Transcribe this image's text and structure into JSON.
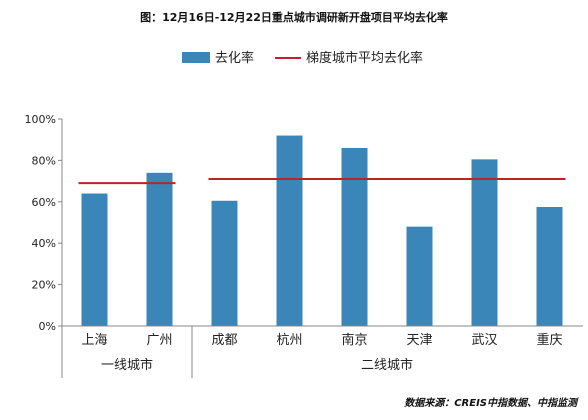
{
  "chart_data": {
    "type": "bar",
    "title": "图：12月16日-12月22日重点城市调研新开盘项目平均去化率",
    "categories": [
      "上海",
      "广州",
      "成都",
      "杭州",
      "南京",
      "天津",
      "武汉",
      "重庆"
    ],
    "series": [
      {
        "name": "去化率",
        "values": [
          64,
          74,
          60.5,
          92,
          86,
          48,
          80.5,
          57.5
        ],
        "color": "#3a86b8"
      }
    ],
    "reference_lines": [
      {
        "name": "梯度城市平均去化率",
        "color": "#c0202a",
        "segments": [
          {
            "from": "上海",
            "to": "广州",
            "value": 69
          },
          {
            "from": "成都",
            "to": "重庆",
            "value": 71
          }
        ]
      }
    ],
    "groups": [
      {
        "label": "一线城市",
        "categories": [
          "上海",
          "广州"
        ]
      },
      {
        "label": "二线城市",
        "categories": [
          "成都",
          "杭州",
          "南京",
          "天津",
          "武汉",
          "重庆"
        ]
      }
    ],
    "ylim": [
      0,
      100
    ],
    "yticks": [
      0,
      20,
      40,
      60,
      80,
      100
    ],
    "ytick_labels": [
      "0%",
      "20%",
      "40%",
      "60%",
      "80%",
      "100%"
    ],
    "xlabel": "",
    "ylabel": "",
    "grid": false,
    "legend": "top-center",
    "source": "数据来源：CREIS中指数据、中指监测"
  }
}
